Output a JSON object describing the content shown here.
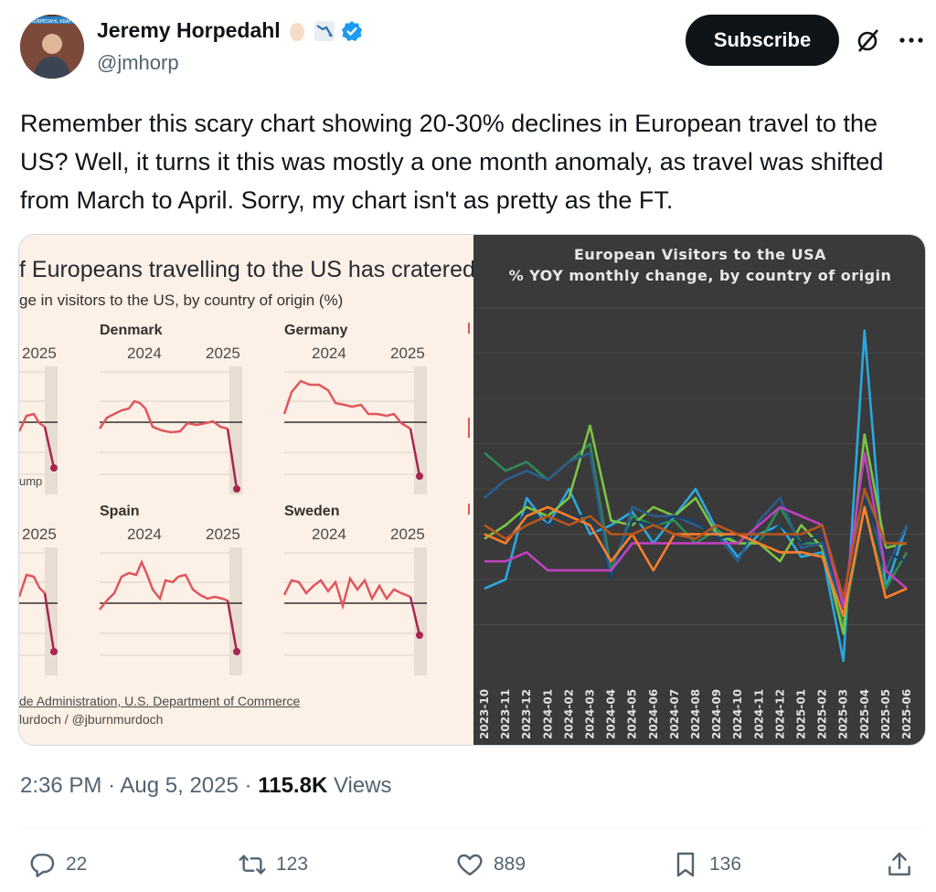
{
  "author": {
    "name": "Jeremy Horpedahl",
    "handle": "@jmhorp",
    "avatar_label": "HORPEDAHL KRAFT"
  },
  "subscribe_label": "Subscribe",
  "tweet_text": "Remember this scary chart showing 20-30% declines in European travel to the US? Well, it turns it this was mostly a one month anomaly, as travel was shifted from March to April. Sorry, my chart isn't as pretty as the FT.",
  "ft_image": {
    "title": "f Europeans travelling to the US has cratered",
    "subtitle": "ge in visitors to the US, by country of origin (%)",
    "countries": [
      "Denmark",
      "Germany",
      "Spain",
      "Sweden"
    ],
    "year_labels": [
      "2024",
      "2025"
    ],
    "note": "ump",
    "source": "de Administration, U.S. Department of Commerce",
    "credit": "lurdoch / @jburnmurdoch"
  },
  "chart_data": {
    "type": "line",
    "title": "European Visitors to the USA",
    "subtitle": "% YOY monthly change, by country of origin",
    "x": [
      "2023-10",
      "2023-11",
      "2023-12",
      "2024-01",
      "2024-02",
      "2024-03",
      "2024-04",
      "2024-05",
      "2024-06",
      "2024-07",
      "2024-08",
      "2024-09",
      "2024-10",
      "2024-11",
      "2024-12",
      "2025-01",
      "2025-02",
      "2025-03",
      "2025-04",
      "2025-05",
      "2025-06"
    ],
    "series": [
      {
        "color": "#2aa8e0",
        "values": [
          -12,
          -10,
          8,
          2,
          10,
          0,
          2,
          5,
          -2,
          4,
          10,
          1,
          -5,
          0,
          2,
          -5,
          -4,
          -28,
          45,
          -12,
          2
        ]
      },
      {
        "color": "#2e8b57",
        "values": [
          18,
          14,
          16,
          12,
          16,
          20,
          -8,
          4,
          2,
          3,
          -2,
          1,
          -2,
          -2,
          6,
          -2,
          -2,
          -20,
          6,
          -12,
          -4
        ]
      },
      {
        "color": "#7cc544",
        "values": [
          -1,
          2,
          6,
          4,
          8,
          24,
          3,
          2,
          6,
          4,
          8,
          0,
          -2,
          -2,
          -6,
          2,
          -3,
          -22,
          22,
          -3,
          -2
        ]
      },
      {
        "color": "#2b5d8c",
        "values": [
          8,
          12,
          14,
          12,
          16,
          18,
          -10,
          6,
          4,
          4,
          2,
          0,
          -6,
          3,
          8,
          -3,
          -2,
          -18,
          10,
          -8,
          2
        ]
      },
      {
        "color": "#1f3f5c",
        "values": [
          0,
          -2,
          5,
          2,
          4,
          4,
          -10,
          3,
          2,
          4,
          3,
          -1,
          0,
          -2,
          2,
          -2,
          0,
          -16,
          8,
          -4,
          -6
        ]
      },
      {
        "color": "#c040c0",
        "values": [
          -6,
          -6,
          -4,
          -8,
          -8,
          -8,
          -8,
          -2,
          -2,
          -2,
          -2,
          -2,
          -2,
          2,
          6,
          4,
          2,
          -16,
          18,
          -8,
          -12
        ]
      },
      {
        "color": "#ff7f2a",
        "values": [
          0,
          -2,
          4,
          6,
          4,
          2,
          -6,
          0,
          -8,
          0,
          0,
          0,
          0,
          -2,
          -4,
          -4,
          -5,
          -18,
          6,
          -14,
          -12
        ]
      },
      {
        "color": "#b8561c",
        "values": [
          2,
          -1,
          2,
          4,
          2,
          4,
          0,
          0,
          2,
          0,
          -1,
          2,
          0,
          0,
          0,
          0,
          2,
          -14,
          10,
          -2,
          -2
        ]
      }
    ],
    "ylim": [
      -32,
      52
    ],
    "grid": true
  },
  "meta": {
    "time": "2:36 PM",
    "date": "Aug 5, 2025",
    "views": "115.8K",
    "views_label": "Views"
  },
  "actions": {
    "replies": "22",
    "reposts": "123",
    "likes": "889",
    "bookmarks": "136"
  },
  "icons": [
    "verified-badge-icon",
    "grok-icon",
    "more-icon",
    "reply-icon",
    "repost-icon",
    "like-icon",
    "bookmark-icon",
    "share-icon"
  ]
}
